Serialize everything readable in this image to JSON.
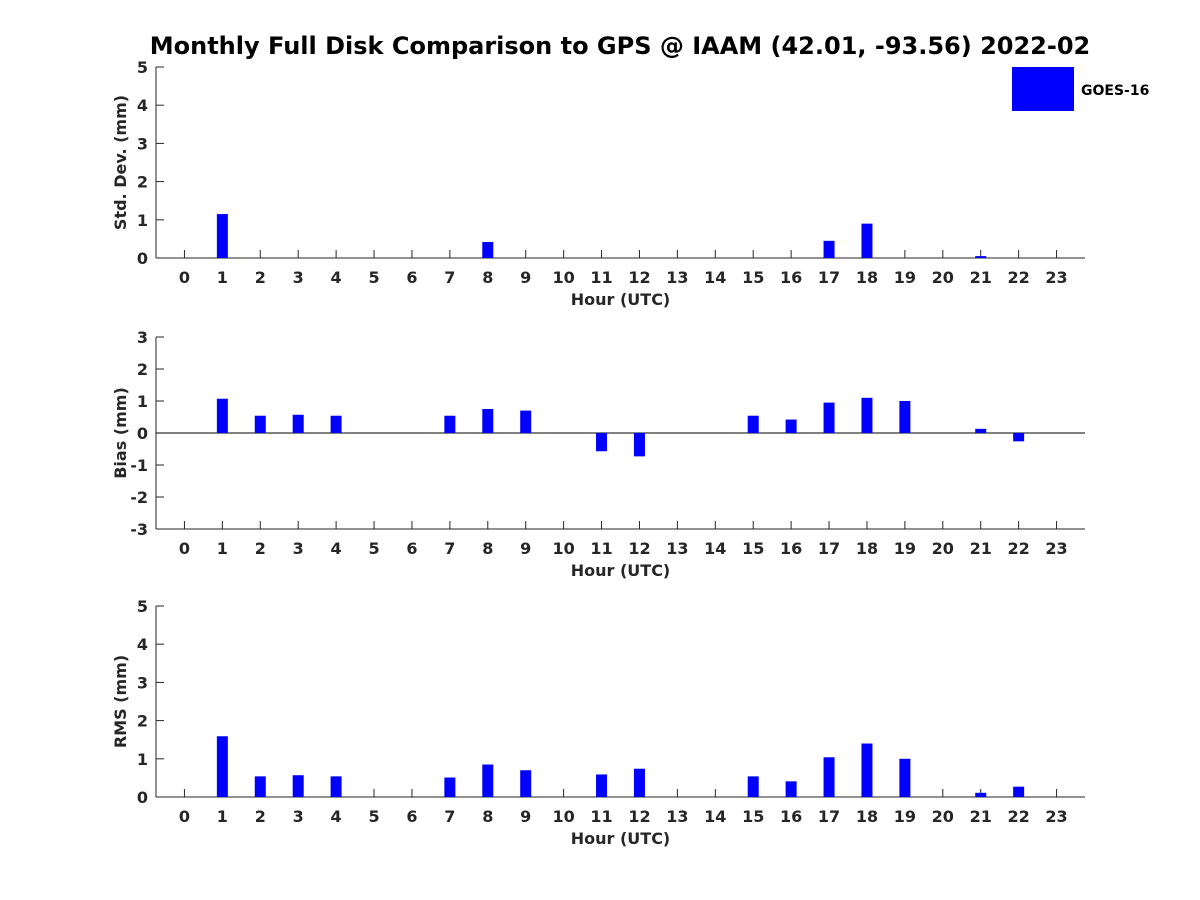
{
  "chart_data": {
    "type": "bar",
    "title": "Monthly Full Disk Comparison to GPS @ IAAM (42.01, -93.56) 2022-02",
    "legend": {
      "entries": [
        "GOES-16"
      ],
      "position": "top-right",
      "color": "#0000ff"
    },
    "bar_color": "#0000ff",
    "axis_color": "#262626",
    "categories": [
      "0",
      "1",
      "2",
      "3",
      "4",
      "5",
      "6",
      "7",
      "8",
      "9",
      "10",
      "11",
      "12",
      "13",
      "14",
      "15",
      "16",
      "17",
      "18",
      "19",
      "20",
      "21",
      "22",
      "23"
    ],
    "panels": [
      {
        "ylabel": "Std. Dev. (mm)",
        "xlabel": "Hour (UTC)",
        "ylim": [
          0,
          5
        ],
        "yticks": [
          0,
          1,
          2,
          3,
          4,
          5
        ],
        "series": [
          {
            "name": "GOES-16",
            "values": [
              null,
              1.15,
              null,
              null,
              null,
              null,
              null,
              null,
              0.42,
              null,
              null,
              null,
              null,
              null,
              null,
              null,
              null,
              0.45,
              0.9,
              null,
              null,
              0.05,
              null,
              null
            ]
          }
        ]
      },
      {
        "ylabel": "Bias (mm)",
        "xlabel": "Hour (UTC)",
        "ylim": [
          -3,
          3
        ],
        "yticks": [
          -3,
          -2,
          -1,
          0,
          1,
          2,
          3
        ],
        "zero_line": true,
        "series": [
          {
            "name": "GOES-16",
            "values": [
              null,
              1.07,
              0.54,
              0.57,
              0.54,
              null,
              null,
              0.54,
              0.75,
              0.7,
              null,
              -0.57,
              -0.73,
              null,
              null,
              0.54,
              0.42,
              0.95,
              1.1,
              1.0,
              null,
              0.13,
              -0.26,
              null
            ]
          }
        ]
      },
      {
        "ylabel": "RMS (mm)",
        "xlabel": "Hour (UTC)",
        "ylim": [
          0,
          5
        ],
        "yticks": [
          0,
          1,
          2,
          3,
          4,
          5
        ],
        "series": [
          {
            "name": "GOES-16",
            "values": [
              null,
              1.59,
              0.54,
              0.57,
              0.54,
              null,
              null,
              0.51,
              0.85,
              0.7,
              null,
              0.59,
              0.74,
              null,
              null,
              0.54,
              0.41,
              1.04,
              1.4,
              1.0,
              null,
              0.11,
              0.27,
              null
            ]
          }
        ]
      }
    ]
  }
}
